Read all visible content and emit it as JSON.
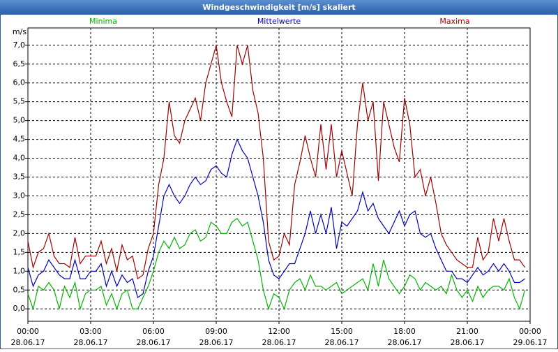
{
  "chart_data": {
    "type": "line",
    "title": "Windgeschwindigkeit [m/s] skaliert",
    "y_label": "m/s",
    "legend": "top",
    "grid": true,
    "xlim": [
      0,
      24
    ],
    "xticks": [
      {
        "value": 0,
        "label": "00:00",
        "date": "28.06.17"
      },
      {
        "value": 3,
        "label": "03:00",
        "date": "28.06.17"
      },
      {
        "value": 6,
        "label": "06:00",
        "date": "28.06.17"
      },
      {
        "value": 9,
        "label": "09:00",
        "date": "28.06.17"
      },
      {
        "value": 12,
        "label": "12:00",
        "date": "28.06.17"
      },
      {
        "value": 15,
        "label": "15:00",
        "date": "28.06.17"
      },
      {
        "value": 18,
        "label": "18:00",
        "date": "28.06.17"
      },
      {
        "value": 21,
        "label": "21:00",
        "date": "28.06.17"
      },
      {
        "value": 24,
        "label": "00:00",
        "date": "29.06.17"
      }
    ],
    "ylim": [
      -0.33,
      7.46
    ],
    "yticks": [
      {
        "value": 0,
        "label": "0,0"
      },
      {
        "value": 0.5,
        "label": "0,5"
      },
      {
        "value": 1,
        "label": "1,0"
      },
      {
        "value": 1.5,
        "label": "1,5"
      },
      {
        "value": 2,
        "label": "2,0"
      },
      {
        "value": 2.5,
        "label": "2,5"
      },
      {
        "value": 3,
        "label": "3,0"
      },
      {
        "value": 3.5,
        "label": "3,5"
      },
      {
        "value": 4,
        "label": "4,0"
      },
      {
        "value": 4.5,
        "label": "4,5"
      },
      {
        "value": 5,
        "label": "5,0"
      },
      {
        "value": 5.5,
        "label": "5,5"
      },
      {
        "value": 6,
        "label": "6,0"
      },
      {
        "value": 6.5,
        "label": "6,5"
      },
      {
        "value": 7,
        "label": "7,0"
      }
    ],
    "x": [
      0,
      0.25,
      0.5,
      0.75,
      1,
      1.25,
      1.5,
      1.75,
      2,
      2.25,
      2.5,
      2.75,
      3,
      3.25,
      3.5,
      3.75,
      4,
      4.25,
      4.5,
      4.75,
      5,
      5.25,
      5.5,
      5.75,
      6,
      6.25,
      6.5,
      6.75,
      7,
      7.25,
      7.5,
      7.75,
      8,
      8.25,
      8.5,
      8.75,
      9,
      9.25,
      9.5,
      9.75,
      10,
      10.25,
      10.5,
      10.75,
      11,
      11.25,
      11.5,
      11.75,
      12,
      12.25,
      12.5,
      12.75,
      13,
      13.25,
      13.5,
      13.75,
      14,
      14.25,
      14.5,
      14.75,
      15,
      15.25,
      15.5,
      15.75,
      16,
      16.25,
      16.5,
      16.75,
      17,
      17.25,
      17.5,
      17.75,
      18,
      18.25,
      18.5,
      18.75,
      19,
      19.25,
      19.5,
      19.75,
      20,
      20.25,
      20.5,
      20.75,
      21,
      21.25,
      21.5,
      21.75,
      22,
      22.25,
      22.5,
      22.75,
      23,
      23.25,
      23.5,
      23.75
    ],
    "series": [
      {
        "name": "Minima",
        "color": "#00b400",
        "values": [
          0.4,
          0.0,
          0.6,
          0.5,
          0.7,
          0.5,
          0.0,
          0.6,
          0.3,
          0.7,
          0.0,
          0.4,
          0.5,
          0.5,
          0.6,
          0.1,
          0.4,
          0.0,
          0.4,
          0.5,
          0.0,
          0.0,
          0.3,
          0.6,
          1.0,
          1.5,
          1.8,
          1.6,
          1.9,
          1.6,
          1.7,
          2.0,
          2.1,
          1.8,
          1.9,
          2.3,
          2.2,
          2.0,
          2.0,
          2.3,
          2.4,
          2.2,
          2.3,
          1.8,
          1.3,
          0.5,
          0.0,
          0.4,
          0.3,
          0.0,
          0.5,
          0.7,
          0.8,
          0.5,
          0.9,
          0.6,
          0.6,
          0.5,
          0.6,
          0.7,
          0.4,
          0.5,
          0.6,
          0.7,
          0.8,
          0.5,
          1.2,
          0.6,
          1.3,
          0.8,
          0.6,
          0.4,
          0.6,
          0.9,
          0.8,
          0.5,
          0.7,
          0.6,
          0.5,
          0.6,
          0.4,
          0.9,
          0.5,
          0.3,
          0.5,
          0.2,
          0.6,
          0.3,
          0.5,
          0.6,
          0.6,
          0.5,
          0.8,
          0.3,
          0.0,
          0.5
        ]
      },
      {
        "name": "Mittelwerte",
        "color": "#0000c0",
        "values": [
          1.1,
          0.6,
          0.9,
          1.0,
          1.3,
          1.1,
          0.9,
          0.8,
          0.8,
          1.3,
          0.8,
          0.8,
          1.0,
          1.0,
          1.2,
          0.6,
          1.0,
          0.6,
          0.9,
          0.7,
          0.8,
          0.3,
          0.4,
          1.0,
          1.4,
          2.2,
          3.0,
          3.3,
          3.0,
          2.8,
          3.0,
          3.3,
          3.5,
          3.3,
          3.4,
          3.7,
          3.8,
          3.6,
          3.5,
          4.1,
          4.5,
          4.2,
          4.0,
          3.5,
          3.0,
          2.3,
          1.3,
          0.9,
          0.8,
          1.0,
          1.2,
          1.2,
          1.6,
          2.0,
          2.6,
          2.0,
          2.5,
          2.0,
          2.7,
          1.6,
          2.3,
          2.2,
          2.4,
          2.6,
          3.1,
          2.6,
          2.8,
          2.4,
          2.2,
          2.0,
          2.3,
          2.6,
          2.2,
          2.5,
          2.6,
          2.0,
          1.9,
          2.0,
          1.6,
          1.3,
          1.0,
          1.0,
          0.8,
          0.8,
          0.7,
          0.9,
          1.1,
          0.9,
          1.0,
          1.2,
          1.0,
          1.2,
          1.0,
          0.7,
          0.7,
          0.8
        ]
      },
      {
        "name": "Maxima",
        "color": "#a00000",
        "values": [
          1.8,
          1.1,
          1.5,
          1.6,
          2.0,
          1.4,
          1.2,
          1.2,
          1.1,
          1.9,
          1.2,
          1.4,
          1.4,
          1.4,
          1.8,
          1.2,
          1.6,
          1.0,
          1.7,
          1.3,
          1.4,
          0.8,
          0.9,
          1.6,
          2.0,
          3.3,
          4.0,
          5.5,
          4.6,
          4.4,
          5.0,
          5.3,
          5.6,
          5.0,
          6.0,
          6.5,
          7.0,
          6.0,
          5.5,
          5.1,
          7.0,
          6.5,
          7.0,
          5.8,
          5.2,
          4.0,
          1.8,
          1.3,
          1.4,
          2.0,
          1.7,
          3.3,
          3.9,
          4.6,
          4.0,
          3.5,
          4.9,
          3.7,
          4.9,
          3.5,
          4.2,
          3.6,
          3.0,
          4.9,
          6.0,
          5.0,
          5.5,
          3.4,
          5.5,
          4.9,
          4.3,
          3.9,
          5.6,
          4.9,
          3.5,
          3.7,
          3.0,
          3.5,
          2.8,
          2.0,
          1.7,
          1.5,
          1.3,
          1.2,
          1.1,
          1.1,
          1.9,
          1.3,
          1.5,
          2.4,
          1.8,
          2.4,
          1.8,
          1.3,
          1.3,
          1.1
        ]
      }
    ]
  }
}
